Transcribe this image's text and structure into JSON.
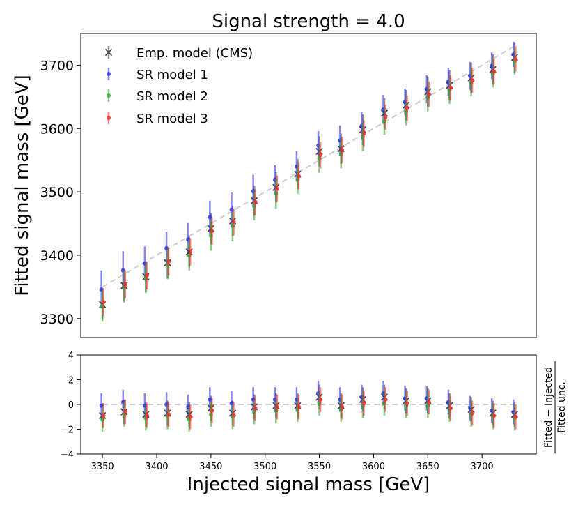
{
  "chart_data": [
    {
      "type": "scatter",
      "panel": "main",
      "title": "Signal strength = 4.0",
      "xlabel": "",
      "ylabel": "Fitted signal mass [GeV]",
      "xlim": [
        3330,
        3750
      ],
      "ylim": [
        3270,
        3750
      ],
      "yticks": [
        3300,
        3400,
        3500,
        3600,
        3700
      ],
      "ytick_labels": [
        "3300",
        "3400",
        "3500",
        "3600",
        "3700"
      ],
      "legend_position": "top-left",
      "reference_line": {
        "style": "dashed",
        "color": "#cccccc",
        "x": [
          3350,
          3730
        ],
        "y": [
          3350,
          3730
        ]
      },
      "x": [
        3350,
        3370,
        3390,
        3410,
        3430,
        3450,
        3470,
        3490,
        3510,
        3530,
        3550,
        3570,
        3590,
        3610,
        3630,
        3650,
        3670,
        3690,
        3710,
        3730
      ],
      "series": [
        {
          "name": "Emp. model (CMS)",
          "marker": "x",
          "color": "#444444",
          "values": [
            3322,
            3352,
            3366,
            3388,
            3405,
            3442,
            3454,
            3486,
            3507,
            3528,
            3564,
            3568,
            3598,
            3624,
            3637,
            3658,
            3668,
            3680,
            3693,
            3712
          ],
          "errors": [
            24,
            24,
            24,
            24,
            24,
            24,
            24,
            24,
            24,
            24,
            24,
            24,
            24,
            24,
            24,
            24,
            24,
            24,
            24,
            24
          ]
        },
        {
          "name": "SR model 1",
          "marker": "o",
          "color": "#3333ee",
          "values": [
            3346,
            3376,
            3387,
            3411,
            3425,
            3460,
            3472,
            3501,
            3519,
            3540,
            3573,
            3581,
            3604,
            3630,
            3642,
            3662,
            3674,
            3683,
            3699,
            3717
          ],
          "errors": [
            30,
            30,
            27,
            26,
            26,
            26,
            27,
            26,
            23,
            24,
            23,
            24,
            22,
            23,
            21,
            22,
            22,
            22,
            21,
            20
          ]
        },
        {
          "name": "SR model 2",
          "marker": "o",
          "color": "#33aa33",
          "values": [
            3320,
            3350,
            3364,
            3386,
            3400,
            3431,
            3446,
            3479,
            3497,
            3520,
            3553,
            3560,
            3587,
            3612,
            3627,
            3649,
            3661,
            3673,
            3687,
            3706
          ],
          "errors": [
            25,
            25,
            24,
            24,
            24,
            24,
            24,
            24,
            24,
            23,
            23,
            23,
            23,
            22,
            22,
            22,
            22,
            22,
            22,
            21
          ]
        },
        {
          "name": "SR model 3",
          "marker": "o",
          "color": "#ee3333",
          "values": [
            3326,
            3354,
            3368,
            3390,
            3405,
            3438,
            3452,
            3484,
            3505,
            3525,
            3558,
            3566,
            3592,
            3618,
            3632,
            3654,
            3664,
            3676,
            3690,
            3710
          ],
          "errors": [
            22,
            22,
            22,
            22,
            22,
            22,
            21,
            21,
            21,
            21,
            21,
            21,
            21,
            20,
            20,
            20,
            20,
            20,
            20,
            20
          ]
        }
      ]
    },
    {
      "type": "scatter",
      "panel": "ratio",
      "xlabel": "Injected signal mass [GeV]",
      "ylabel_top": "Fitted − Injected",
      "ylabel_bottom": "Fitted unc.",
      "xlim": [
        3330,
        3750
      ],
      "ylim": [
        -4,
        4
      ],
      "xticks": [
        3350,
        3400,
        3450,
        3500,
        3550,
        3600,
        3650,
        3700
      ],
      "xtick_labels": [
        "3350",
        "3400",
        "3450",
        "3500",
        "3550",
        "3600",
        "3650",
        "3700"
      ],
      "yticks": [
        -4,
        -2,
        0,
        2,
        4
      ],
      "ytick_labels": [
        "−4",
        "−2",
        "0",
        "2",
        "4"
      ],
      "reference_line": {
        "style": "dashed",
        "color": "#cccccc",
        "y": 0
      },
      "x": [
        3350,
        3370,
        3390,
        3410,
        3430,
        3450,
        3470,
        3490,
        3510,
        3530,
        3550,
        3570,
        3590,
        3610,
        3630,
        3650,
        3670,
        3690,
        3710,
        3730
      ],
      "series": [
        {
          "name": "Emp. model (CMS)",
          "marker": "x",
          "color": "#444444",
          "values": [
            -0.9,
            -0.6,
            -0.8,
            -0.7,
            -0.8,
            -0.3,
            -0.7,
            -0.2,
            -0.1,
            -0.1,
            0.6,
            -0.1,
            0.4,
            0.6,
            0.3,
            0.3,
            -0.1,
            -0.4,
            -0.7,
            -0.8
          ],
          "errors": [
            1,
            1,
            1,
            1,
            1,
            1,
            1,
            1,
            1,
            1,
            1,
            1,
            1,
            1,
            1,
            1,
            1,
            1,
            1,
            1
          ]
        },
        {
          "name": "SR model 1",
          "marker": "o",
          "color": "#3333ee",
          "values": [
            -0.1,
            0.2,
            -0.1,
            0.0,
            -0.2,
            0.4,
            0.1,
            0.4,
            0.4,
            0.4,
            0.9,
            0.4,
            0.6,
            0.9,
            0.5,
            0.5,
            0.2,
            -0.3,
            -0.5,
            -0.6
          ],
          "errors": [
            1,
            1,
            1,
            1,
            1,
            1,
            1,
            1,
            1,
            1,
            1,
            1,
            1,
            1,
            1,
            1,
            1,
            1,
            1,
            1
          ]
        },
        {
          "name": "SR model 2",
          "marker": "o",
          "color": "#33aa33",
          "values": [
            -1.2,
            -0.8,
            -1.1,
            -1.0,
            -1.2,
            -0.8,
            -1.0,
            -0.6,
            -0.5,
            -0.4,
            0.1,
            -0.4,
            -0.1,
            0.1,
            -0.1,
            -0.1,
            -0.4,
            -0.8,
            -1.0,
            -1.1
          ],
          "errors": [
            1,
            1,
            1,
            1,
            1,
            1,
            1,
            1,
            1,
            1,
            1,
            1,
            1,
            1,
            1,
            1,
            1,
            1,
            1,
            1
          ]
        },
        {
          "name": "SR model 3",
          "marker": "o",
          "color": "#ee3333",
          "values": [
            -0.9,
            -0.6,
            -0.9,
            -0.8,
            -1.0,
            -0.5,
            -0.8,
            -0.3,
            -0.2,
            -0.2,
            0.4,
            -0.2,
            0.1,
            0.4,
            0.1,
            0.2,
            -0.3,
            -0.7,
            -0.9,
            -1.0
          ],
          "errors": [
            1,
            1,
            1,
            1,
            1,
            1,
            1,
            1,
            1,
            1,
            1,
            1,
            1,
            1,
            1,
            1,
            1,
            1,
            1,
            1
          ]
        }
      ]
    }
  ]
}
